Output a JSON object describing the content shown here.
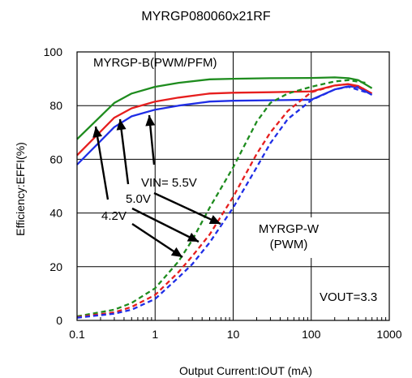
{
  "chart_data": {
    "type": "line",
    "title": "MYRGP080060x21RF",
    "xlabel": "Output Current:IOUT (mA)",
    "ylabel": "Efficiency:EFFI(%)",
    "x_scale": "log",
    "xlim": [
      0.1,
      1000
    ],
    "ylim": [
      0,
      100
    ],
    "x_ticks": [
      "0.1",
      "1",
      "10",
      "100",
      "1000"
    ],
    "y_ticks": [
      "0",
      "20",
      "40",
      "60",
      "80",
      "100"
    ],
    "grid": true,
    "colors": {
      "4.2V": "#1f2ee6",
      "5.0V": "#e61e1e",
      "5.5V": "#1e8c1e",
      "axis": "#000000"
    },
    "annotations": {
      "pwm_pfm_label": "MYRGP-B(PWM/PFM)",
      "pwm_label_line1": "MYRGP-W",
      "pwm_label_line2": "(PWM)",
      "vout_label": "VOUT=3.3",
      "vin_55": "VIN= 5.5V",
      "vin_50": "5.0V",
      "vin_42": "4.2V"
    },
    "series": [
      {
        "mode": "PWM/PFM",
        "vin": "5.5V",
        "style": "solid",
        "x": [
          0.1,
          0.3,
          0.5,
          1,
          2,
          5,
          10,
          30,
          100,
          200,
          300,
          400,
          600
        ],
        "y": [
          67.5,
          81,
          84.5,
          87,
          88.5,
          89.8,
          90,
          90.2,
          90.3,
          90.5,
          90.2,
          89.5,
          86.5
        ]
      },
      {
        "mode": "PWM/PFM",
        "vin": "5.0V",
        "style": "solid",
        "x": [
          0.1,
          0.3,
          0.5,
          1,
          2,
          5,
          10,
          30,
          100,
          200,
          300,
          400,
          600
        ],
        "y": [
          61.5,
          75.5,
          79,
          81.5,
          83,
          84.5,
          84.8,
          85,
          85.3,
          87.5,
          88,
          87.3,
          84.5
        ]
      },
      {
        "mode": "PWM/PFM",
        "vin": "4.2V",
        "style": "solid",
        "x": [
          0.1,
          0.3,
          0.5,
          1,
          2,
          5,
          10,
          30,
          100,
          200,
          300,
          400,
          600
        ],
        "y": [
          58,
          72,
          76,
          78.5,
          80,
          81.5,
          81.8,
          82,
          82.2,
          86,
          87.2,
          86.8,
          84
        ]
      },
      {
        "mode": "PWM",
        "vin": "5.5V",
        "style": "dashed",
        "x": [
          0.1,
          0.3,
          0.5,
          1,
          2,
          3,
          5,
          10,
          20,
          30,
          50,
          100,
          200,
          300,
          500
        ],
        "y": [
          1.5,
          4,
          6.5,
          12,
          22,
          30,
          42,
          57,
          74,
          81,
          84.5,
          87,
          89,
          89.5,
          88.5
        ]
      },
      {
        "mode": "PWM",
        "vin": "5.0V",
        "style": "dashed",
        "x": [
          0.1,
          0.3,
          0.5,
          1,
          2,
          3,
          5,
          10,
          20,
          30,
          50,
          100,
          200,
          300,
          500
        ],
        "y": [
          1.2,
          3,
          5,
          9.5,
          18,
          24,
          32,
          46,
          62,
          70,
          78,
          85,
          87.5,
          88,
          86
        ]
      },
      {
        "mode": "PWM",
        "vin": "4.2V",
        "style": "dashed",
        "x": [
          0.1,
          0.3,
          0.5,
          1,
          2,
          3,
          5,
          10,
          20,
          30,
          50,
          100,
          200,
          300,
          500
        ],
        "y": [
          1,
          2.5,
          4,
          8,
          16,
          21,
          29,
          42,
          57,
          66,
          75,
          82,
          86,
          87,
          85
        ]
      }
    ]
  }
}
